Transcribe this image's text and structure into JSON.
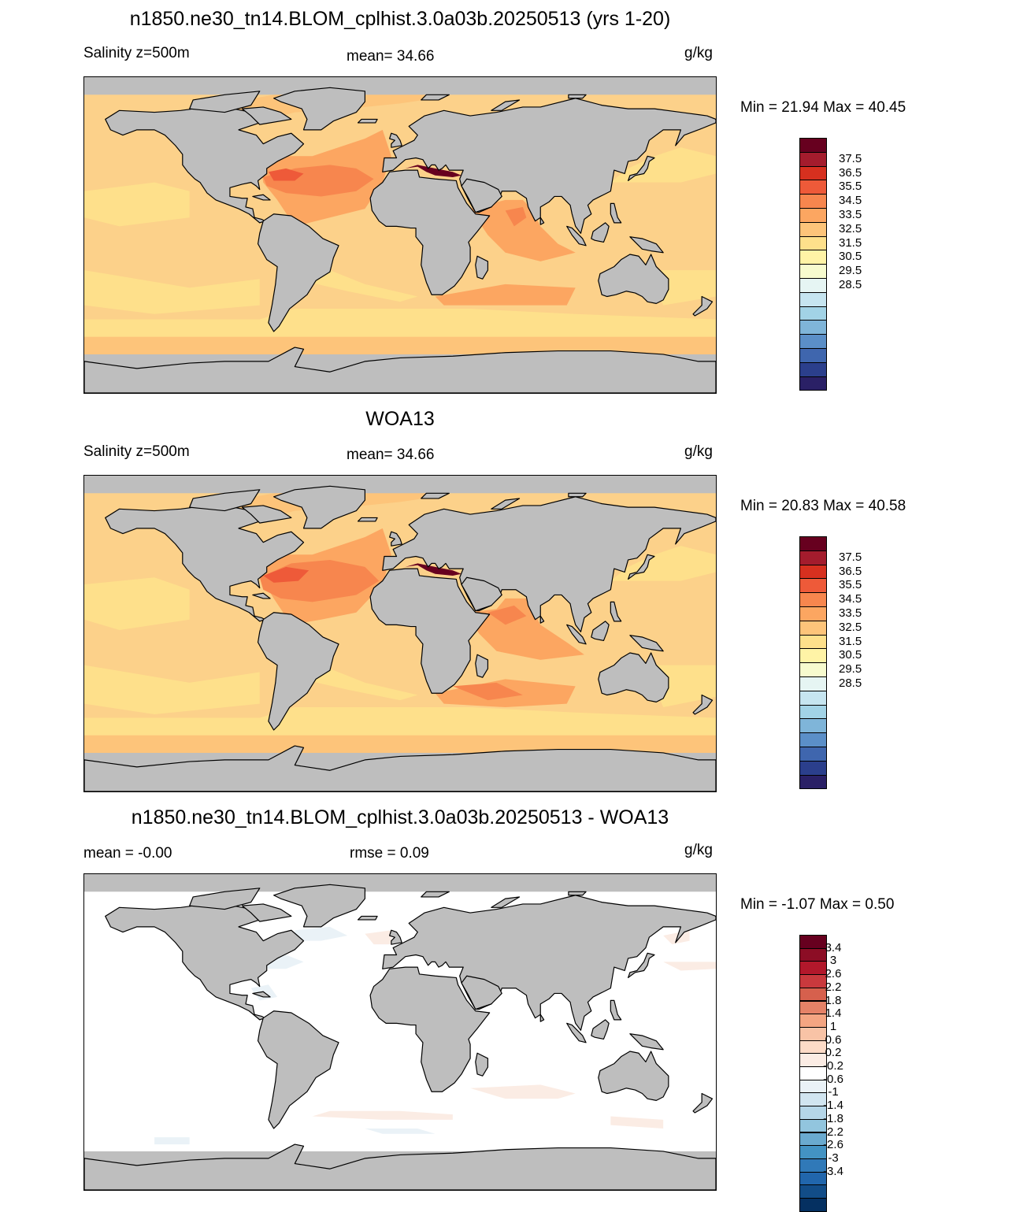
{
  "land_color": "#bebebe",
  "panels": [
    {
      "title": "n1850.ne30_tn14.BLOM_cplhist.3.0a03b.20250513 (yrs 1-20)",
      "left_label": "Salinity z=500m",
      "center_label": "mean=  34.66",
      "units": "g/kg",
      "minmax": "Min =  21.94 Max =  40.45",
      "background": "#fcd18a",
      "legend_colors": [
        "#67001f",
        "#a41c2d",
        "#d7301f",
        "#ee5a39",
        "#f7864e",
        "#fca661",
        "#fdc47a",
        "#fee08b",
        "#fff3a6",
        "#f7fbce",
        "#e6f5f3",
        "#c6e5f0",
        "#a2d3e6",
        "#7fb5d9",
        "#5b8fc8",
        "#3f66ae",
        "#2b3f8c",
        "#2a2066"
      ],
      "legend_labels": [
        "37.5",
        "36.5",
        "35.5",
        "34.5",
        "33.5",
        "32.5",
        "31.5",
        "30.5",
        "29.5",
        "28.5"
      ],
      "sal_field": "model"
    },
    {
      "title": "WOA13",
      "left_label": "Salinity z=500m",
      "center_label": "mean=  34.66",
      "units": "g/kg",
      "minmax": "Min =  20.83 Max =  40.58",
      "background": "#fcd18a",
      "legend_colors": [
        "#67001f",
        "#a41c2d",
        "#d7301f",
        "#ee5a39",
        "#f7864e",
        "#fca661",
        "#fdc47a",
        "#fee08b",
        "#fff3a6",
        "#f7fbce",
        "#e6f5f3",
        "#c6e5f0",
        "#a2d3e6",
        "#7fb5d9",
        "#5b8fc8",
        "#3f66ae",
        "#2b3f8c",
        "#2a2066"
      ],
      "legend_labels": [
        "37.5",
        "36.5",
        "35.5",
        "34.5",
        "33.5",
        "32.5",
        "31.5",
        "30.5",
        "29.5",
        "28.5"
      ],
      "sal_field": "obs"
    },
    {
      "title": "n1850.ne30_tn14.BLOM_cplhist.3.0a03b.20250513 - WOA13",
      "left_label": "mean =  -0.00",
      "center_label": "rmse =   0.09",
      "units": "g/kg",
      "minmax": "Min =  -1.07 Max =    0.50",
      "background": "#ffffff",
      "legend_colors": [
        "#67001f",
        "#8c0d25",
        "#b2182b",
        "#c9393d",
        "#d6604d",
        "#e58267",
        "#f4a582",
        "#f8c3a6",
        "#fddbc7",
        "#fbece4",
        "#ffffff",
        "#eaf2f7",
        "#d1e5f0",
        "#b5d6e8",
        "#92c5de",
        "#6aaacf",
        "#4393c3",
        "#3079b8",
        "#2166ac",
        "#124d88",
        "#053061"
      ],
      "legend_labels": [
        "3.4",
        "3",
        "2.6",
        "2.2",
        "1.8",
        "1.4",
        "1",
        "0.6",
        "0.2",
        "-0.2",
        "-0.6",
        "-1",
        "-1.4",
        "-1.8",
        "-2.2",
        "-2.6",
        "-3",
        "-3.4"
      ],
      "sal_field": "diff"
    }
  ]
}
